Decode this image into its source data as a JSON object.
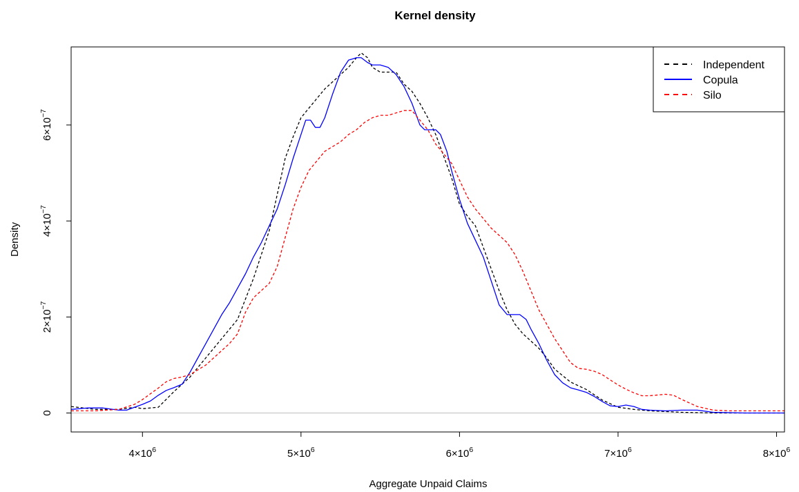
{
  "chart_data": {
    "type": "line",
    "title": "Kernel density",
    "xlabel": "Aggregate Unpaid Claims",
    "ylabel": "Density",
    "xlim": [
      3550000,
      8050000
    ],
    "ylim": [
      -3.95e-08,
      7.625e-07
    ],
    "grid": false,
    "legend_position": "top-right",
    "x_ticks": [
      {
        "value": 4000000,
        "mant": "4",
        "exp": "6"
      },
      {
        "value": 5000000,
        "mant": "5",
        "exp": "6"
      },
      {
        "value": 6000000,
        "mant": "6",
        "exp": "6"
      },
      {
        "value": 7000000,
        "mant": "7",
        "exp": "6"
      },
      {
        "value": 8000000,
        "mant": "8",
        "exp": "6"
      }
    ],
    "y_ticks": [
      {
        "value": 0,
        "mant": "0",
        "exp": ""
      },
      {
        "value": 2e-07,
        "mant": "2",
        "exp": "−7"
      },
      {
        "value": 4e-07,
        "mant": "4",
        "exp": "−7"
      },
      {
        "value": 6e-07,
        "mant": "6",
        "exp": "−7"
      }
    ],
    "series": [
      {
        "name": "Independent",
        "color": "#000000",
        "dash": "dashed",
        "x": [
          3550000,
          3700000,
          3850000,
          3950000,
          4000000,
          4100000,
          4200000,
          4300000,
          4400000,
          4500000,
          4600000,
          4700000,
          4800000,
          4850000,
          4900000,
          4950000,
          5000000,
          5050000,
          5100000,
          5150000,
          5200000,
          5250000,
          5300000,
          5350000,
          5380000,
          5420000,
          5450000,
          5500000,
          5600000,
          5650000,
          5700000,
          5750000,
          5800000,
          5850000,
          5900000,
          5950000,
          6000000,
          6050000,
          6100000,
          6150000,
          6200000,
          6250000,
          6300000,
          6350000,
          6400000,
          6450000,
          6500000,
          6550000,
          6600000,
          6700000,
          6800000,
          6900000,
          7000000,
          7100000,
          7200000,
          7300000,
          7400000,
          7600000,
          7800000,
          8050000
        ],
        "y": [
          1.35e-08,
          7.5e-09,
          7.5e-09,
          1.2e-08,
          9e-09,
          1.2e-08,
          4.5e-08,
          7.5e-08,
          1.15e-07,
          1.55e-07,
          1.95e-07,
          2.8e-07,
          3.8e-07,
          4.55e-07,
          5.3e-07,
          5.75e-07,
          6.15e-07,
          6.35e-07,
          6.55e-07,
          6.75e-07,
          6.9e-07,
          7.05e-07,
          7.2e-07,
          7.4e-07,
          7.5e-07,
          7.4e-07,
          7.2e-07,
          7.1e-07,
          7.1e-07,
          6.85e-07,
          6.7e-07,
          6.45e-07,
          6.15e-07,
          5.8e-07,
          5.35e-07,
          4.9e-07,
          4.35e-07,
          4.1e-07,
          3.9e-07,
          3.45e-07,
          3e-07,
          2.55e-07,
          2.15e-07,
          1.85e-07,
          1.65e-07,
          1.5e-07,
          1.35e-07,
          1.15e-07,
          9.15e-08,
          6.45e-08,
          4.9e-08,
          2.7e-08,
          1.2e-08,
          7.5e-09,
          4.5e-09,
          3e-09,
          1.5e-09,
          0,
          0,
          0
        ]
      },
      {
        "name": "Copula",
        "color": "#0000ff",
        "dash": "solid",
        "x": [
          3550000,
          3650000,
          3750000,
          3850000,
          3900000,
          4000000,
          4050000,
          4100000,
          4150000,
          4200000,
          4250000,
          4300000,
          4350000,
          4400000,
          4450000,
          4500000,
          4550000,
          4600000,
          4650000,
          4700000,
          4750000,
          4800000,
          4850000,
          4900000,
          4950000,
          5000000,
          5030000,
          5060000,
          5090000,
          5120000,
          5150000,
          5200000,
          5250000,
          5300000,
          5350000,
          5380000,
          5420000,
          5450000,
          5500000,
          5550000,
          5600000,
          5650000,
          5700000,
          5750000,
          5780000,
          5820000,
          5850000,
          5880000,
          5920000,
          5950000,
          6000000,
          6050000,
          6100000,
          6150000,
          6200000,
          6250000,
          6300000,
          6340000,
          6380000,
          6420000,
          6450000,
          6500000,
          6550000,
          6600000,
          6650000,
          6700000,
          6750000,
          6800000,
          6850000,
          6900000,
          6950000,
          7000000,
          7050000,
          7100000,
          7150000,
          7200000,
          7300000,
          7400000,
          7500000,
          7600000,
          7800000,
          8050000
        ],
        "y": [
          7.5e-09,
          1.05e-08,
          1.05e-08,
          6e-09,
          6e-09,
          1.8e-08,
          2.5e-08,
          3.7e-08,
          4.7e-08,
          5.3e-08,
          6e-08,
          8.5e-08,
          1.15e-07,
          1.45e-07,
          1.75e-07,
          2.05e-07,
          2.3e-07,
          2.6e-07,
          2.9e-07,
          3.25e-07,
          3.55e-07,
          3.9e-07,
          4.25e-07,
          4.75e-07,
          5.3e-07,
          5.8e-07,
          6.1e-07,
          6.1e-07,
          5.95e-07,
          5.95e-07,
          6.15e-07,
          6.65e-07,
          7.1e-07,
          7.35e-07,
          7.4e-07,
          7.4e-07,
          7.3e-07,
          7.25e-07,
          7.25e-07,
          7.2e-07,
          7.05e-07,
          6.8e-07,
          6.45e-07,
          6e-07,
          5.9e-07,
          5.9e-07,
          5.9e-07,
          5.8e-07,
          5.45e-07,
          5.05e-07,
          4.45e-07,
          3.95e-07,
          3.6e-07,
          3.25e-07,
          2.75e-07,
          2.25e-07,
          2.05e-07,
          2.05e-07,
          2.05e-07,
          1.95e-07,
          1.75e-07,
          1.45e-07,
          1.1e-07,
          8e-08,
          6.3e-08,
          5.25e-08,
          4.8e-08,
          4.3e-08,
          3.45e-08,
          2.4e-08,
          1.5e-08,
          1.35e-08,
          1.65e-08,
          1.35e-08,
          7.5e-09,
          6e-09,
          4.5e-09,
          6e-09,
          6e-09,
          1.5e-09,
          0,
          0
        ]
      },
      {
        "name": "Silo",
        "color": "#ff0000",
        "dash": "dashed",
        "x": [
          3550000,
          3700000,
          3850000,
          3950000,
          4000000,
          4100000,
          4150000,
          4200000,
          4250000,
          4300000,
          4350000,
          4400000,
          4450000,
          4500000,
          4550000,
          4600000,
          4650000,
          4700000,
          4750000,
          4800000,
          4850000,
          4900000,
          4950000,
          5000000,
          5050000,
          5100000,
          5150000,
          5200000,
          5250000,
          5300000,
          5350000,
          5400000,
          5450000,
          5500000,
          5550000,
          5600000,
          5650000,
          5700000,
          5750000,
          5800000,
          5850000,
          5900000,
          5950000,
          6000000,
          6050000,
          6100000,
          6150000,
          6200000,
          6250000,
          6300000,
          6350000,
          6400000,
          6450000,
          6500000,
          6550000,
          6600000,
          6650000,
          6700000,
          6750000,
          6800000,
          6850000,
          6900000,
          6950000,
          7000000,
          7050000,
          7100000,
          7150000,
          7200000,
          7250000,
          7300000,
          7350000,
          7400000,
          7450000,
          7500000,
          7600000,
          7700000,
          7800000,
          8050000
        ],
        "y": [
          4.5e-09,
          4.5e-09,
          7.5e-09,
          1.8e-08,
          2.8e-08,
          5.2e-08,
          6.5e-08,
          7.2e-08,
          7.5e-08,
          8e-08,
          9e-08,
          1e-07,
          1.15e-07,
          1.3e-07,
          1.45e-07,
          1.65e-07,
          2.1e-07,
          2.4e-07,
          2.55e-07,
          2.7e-07,
          3.05e-07,
          3.65e-07,
          4.25e-07,
          4.7e-07,
          5.05e-07,
          5.25e-07,
          5.45e-07,
          5.55e-07,
          5.65e-07,
          5.8e-07,
          5.9e-07,
          6.05e-07,
          6.15e-07,
          6.2e-07,
          6.2e-07,
          6.25e-07,
          6.3e-07,
          6.3e-07,
          6.1e-07,
          5.9e-07,
          5.6e-07,
          5.4e-07,
          5.2e-07,
          4.85e-07,
          4.5e-07,
          4.25e-07,
          4.05e-07,
          3.85e-07,
          3.7e-07,
          3.55e-07,
          3.3e-07,
          2.95e-07,
          2.55e-07,
          2.15e-07,
          1.85e-07,
          1.55e-07,
          1.3e-07,
          1.05e-07,
          9.3e-08,
          9.1e-08,
          8.7e-08,
          8e-08,
          6.9e-08,
          5.85e-08,
          4.95e-08,
          4.2e-08,
          3.6e-08,
          3.6e-08,
          3.75e-08,
          3.9e-08,
          3.7e-08,
          2.85e-08,
          2.1e-08,
          1.35e-08,
          6e-09,
          4.5e-09,
          4.5e-09,
          4.5e-09
        ]
      }
    ]
  }
}
